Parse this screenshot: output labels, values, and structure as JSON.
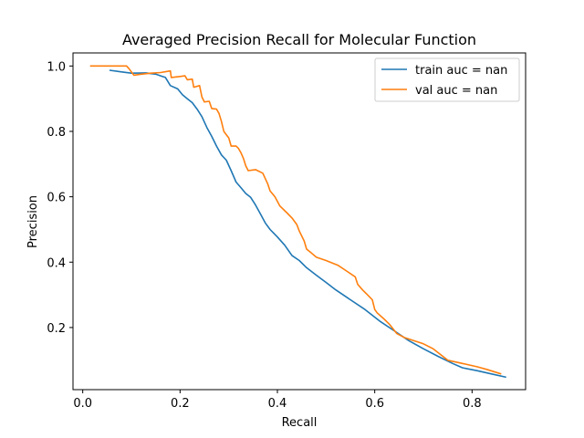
{
  "chart_data": {
    "type": "line",
    "title": "Averaged Precision Recall for Molecular Function",
    "xlabel": "Recall",
    "ylabel": "Precision",
    "xlim": [
      -0.02,
      0.91
    ],
    "ylim": [
      0.01,
      1.04
    ],
    "xticks": [
      0.0,
      0.2,
      0.4,
      0.6,
      0.8
    ],
    "xtick_labels": [
      "0.0",
      "0.2",
      "0.4",
      "0.6",
      "0.8"
    ],
    "yticks": [
      0.2,
      0.4,
      0.6,
      0.8,
      1.0
    ],
    "ytick_labels": [
      "0.2",
      "0.4",
      "0.6",
      "0.8",
      "1.0"
    ],
    "grid": false,
    "legend_position": "top-right",
    "series": [
      {
        "name": "train auc = nan",
        "color": "#1f77b4",
        "points": [
          [
            0.055,
            0.987
          ],
          [
            0.08,
            0.982
          ],
          [
            0.1,
            0.978
          ],
          [
            0.13,
            0.979
          ],
          [
            0.15,
            0.975
          ],
          [
            0.16,
            0.97
          ],
          [
            0.17,
            0.965
          ],
          [
            0.18,
            0.94
          ],
          [
            0.195,
            0.93
          ],
          [
            0.205,
            0.912
          ],
          [
            0.215,
            0.9
          ],
          [
            0.225,
            0.888
          ],
          [
            0.235,
            0.868
          ],
          [
            0.245,
            0.845
          ],
          [
            0.255,
            0.812
          ],
          [
            0.265,
            0.785
          ],
          [
            0.275,
            0.755
          ],
          [
            0.285,
            0.728
          ],
          [
            0.295,
            0.712
          ],
          [
            0.305,
            0.68
          ],
          [
            0.315,
            0.645
          ],
          [
            0.325,
            0.628
          ],
          [
            0.335,
            0.61
          ],
          [
            0.345,
            0.598
          ],
          [
            0.355,
            0.575
          ],
          [
            0.365,
            0.548
          ],
          [
            0.375,
            0.52
          ],
          [
            0.385,
            0.5
          ],
          [
            0.4,
            0.477
          ],
          [
            0.415,
            0.452
          ],
          [
            0.43,
            0.42
          ],
          [
            0.445,
            0.405
          ],
          [
            0.46,
            0.383
          ],
          [
            0.48,
            0.36
          ],
          [
            0.5,
            0.338
          ],
          [
            0.52,
            0.315
          ],
          [
            0.55,
            0.285
          ],
          [
            0.58,
            0.255
          ],
          [
            0.61,
            0.22
          ],
          [
            0.64,
            0.19
          ],
          [
            0.67,
            0.16
          ],
          [
            0.7,
            0.135
          ],
          [
            0.73,
            0.112
          ],
          [
            0.76,
            0.09
          ],
          [
            0.78,
            0.077
          ],
          [
            0.81,
            0.068
          ],
          [
            0.84,
            0.058
          ],
          [
            0.87,
            0.048
          ]
        ]
      },
      {
        "name": "val auc = nan",
        "color": "#ff7f0e",
        "points": [
          [
            0.015,
            1.0
          ],
          [
            0.05,
            1.0
          ],
          [
            0.09,
            1.0
          ],
          [
            0.095,
            0.992
          ],
          [
            0.105,
            0.972
          ],
          [
            0.12,
            0.975
          ],
          [
            0.14,
            0.978
          ],
          [
            0.16,
            0.98
          ],
          [
            0.18,
            0.985
          ],
          [
            0.182,
            0.965
          ],
          [
            0.2,
            0.968
          ],
          [
            0.21,
            0.97
          ],
          [
            0.215,
            0.958
          ],
          [
            0.225,
            0.96
          ],
          [
            0.228,
            0.935
          ],
          [
            0.24,
            0.94
          ],
          [
            0.245,
            0.905
          ],
          [
            0.25,
            0.89
          ],
          [
            0.26,
            0.892
          ],
          [
            0.265,
            0.87
          ],
          [
            0.275,
            0.868
          ],
          [
            0.28,
            0.855
          ],
          [
            0.285,
            0.83
          ],
          [
            0.29,
            0.8
          ],
          [
            0.295,
            0.79
          ],
          [
            0.3,
            0.78
          ],
          [
            0.305,
            0.755
          ],
          [
            0.315,
            0.755
          ],
          [
            0.32,
            0.748
          ],
          [
            0.325,
            0.735
          ],
          [
            0.33,
            0.718
          ],
          [
            0.335,
            0.695
          ],
          [
            0.34,
            0.68
          ],
          [
            0.355,
            0.683
          ],
          [
            0.37,
            0.672
          ],
          [
            0.38,
            0.64
          ],
          [
            0.385,
            0.618
          ],
          [
            0.395,
            0.6
          ],
          [
            0.405,
            0.572
          ],
          [
            0.42,
            0.55
          ],
          [
            0.43,
            0.535
          ],
          [
            0.44,
            0.515
          ],
          [
            0.445,
            0.495
          ],
          [
            0.455,
            0.465
          ],
          [
            0.46,
            0.44
          ],
          [
            0.47,
            0.428
          ],
          [
            0.48,
            0.415
          ],
          [
            0.5,
            0.405
          ],
          [
            0.525,
            0.39
          ],
          [
            0.545,
            0.37
          ],
          [
            0.56,
            0.355
          ],
          [
            0.565,
            0.332
          ],
          [
            0.575,
            0.315
          ],
          [
            0.585,
            0.3
          ],
          [
            0.595,
            0.285
          ],
          [
            0.6,
            0.255
          ],
          [
            0.605,
            0.245
          ],
          [
            0.62,
            0.225
          ],
          [
            0.63,
            0.21
          ],
          [
            0.645,
            0.182
          ],
          [
            0.66,
            0.17
          ],
          [
            0.68,
            0.16
          ],
          [
            0.7,
            0.15
          ],
          [
            0.72,
            0.135
          ],
          [
            0.75,
            0.1
          ],
          [
            0.78,
            0.09
          ],
          [
            0.81,
            0.08
          ],
          [
            0.83,
            0.072
          ],
          [
            0.86,
            0.058
          ]
        ]
      }
    ]
  }
}
